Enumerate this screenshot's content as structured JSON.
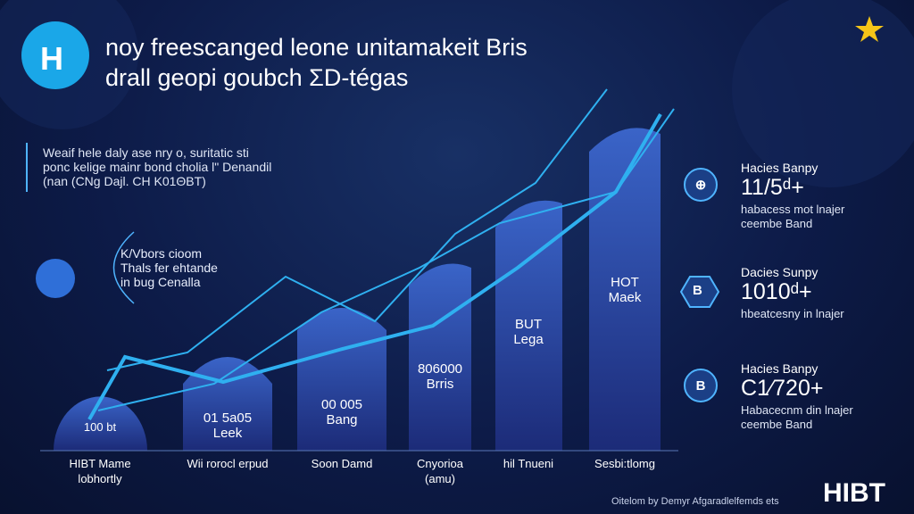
{
  "header": {
    "logo": "H",
    "title_lines": [
      "noy freescanged leone unitamakeit Bris",
      "drall geopi goubch ΣD-tégas"
    ]
  },
  "intro": {
    "lines": [
      "Weaif hele daly ase nry o, suritatic sti",
      "ponc kelige mainr bond cholia l\" Denandil",
      "(nan (CNg Dajl. CH K01ΘBT)"
    ]
  },
  "callout": {
    "lines": [
      "K/Vbors cioom",
      "Thals fer ehtande",
      "in bug Cenalla"
    ]
  },
  "bars": [
    {
      "label": [
        "100 bt"
      ],
      "axis_label": [
        "HIBT Mame",
        "lobhortly"
      ]
    },
    {
      "label": [
        "01 5a05",
        "Leek"
      ],
      "axis_label": [
        "Wii rorocl erpud"
      ]
    },
    {
      "label": [
        "00 005",
        "Bang"
      ],
      "axis_label": [
        "Soon Damd"
      ]
    },
    {
      "label": [
        "806000",
        "Brris"
      ],
      "axis_label": [
        "Cnyorioa",
        "(amu)"
      ]
    },
    {
      "label": [
        "BUT",
        "Lega"
      ],
      "axis_label": [
        "hil Tnueni"
      ]
    },
    {
      "label": [
        "HOT",
        "Maek"
      ],
      "axis_label": [
        "Sesbi:tlomg"
      ]
    }
  ],
  "cards": [
    {
      "icon": "⊕",
      "title": "Hacies Banpy",
      "value": "11/5ᵈ+",
      "desc": [
        "habacess mot lnajer",
        "ceembe Band"
      ]
    },
    {
      "icon": "B",
      "title": "Dacies Sunpy",
      "value": "1010ᵈ+",
      "desc": [
        "hbeatcesny in lnajer"
      ]
    },
    {
      "icon": "B",
      "title": "Hacies Banpy",
      "value": "C1⁄720+",
      "desc": [
        "Habacecnm din lnajer",
        "ceembe Band"
      ]
    }
  ],
  "footer": {
    "credit": "Oitelom by Demyr Afgaradlelfemds ets",
    "brand": "HIBT"
  }
}
